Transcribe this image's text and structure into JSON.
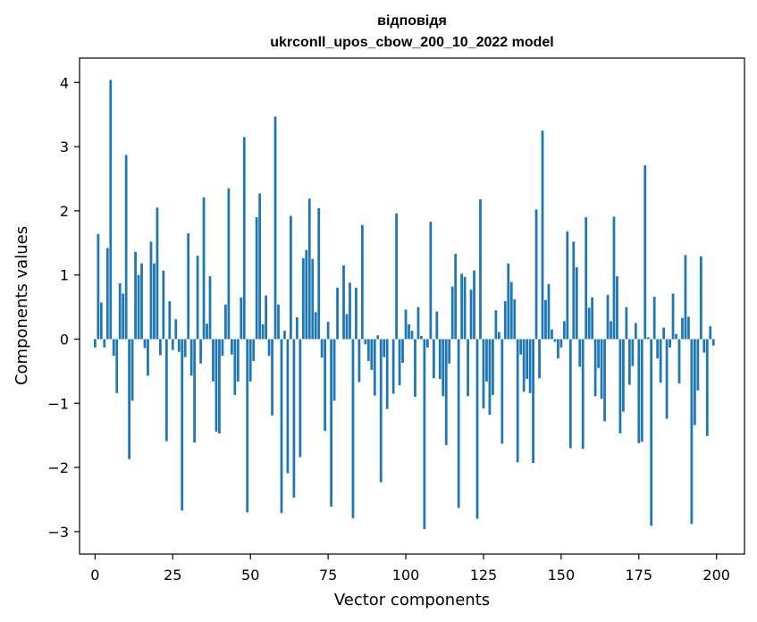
{
  "chart_data": {
    "type": "bar",
    "title_line1": "відповідя",
    "title_line2": "ukrconll_upos_cbow_200_10_2022 model",
    "xlabel": "Vector components",
    "ylabel": "Components values",
    "xlim": [
      -5,
      209
    ],
    "ylim": [
      -3.35,
      4.38
    ],
    "xticks": [
      0,
      25,
      50,
      75,
      100,
      125,
      150,
      175,
      200
    ],
    "yticks": [
      -3,
      -2,
      -1,
      0,
      1,
      2,
      3,
      4
    ],
    "grid": false,
    "legend": "none",
    "bar_color": "#1f77b4",
    "values": [
      -0.13,
      1.64,
      0.57,
      -0.13,
      1.42,
      4.04,
      -0.26,
      -0.84,
      0.87,
      0.71,
      2.87,
      -1.87,
      -0.96,
      1.36,
      1.0,
      1.18,
      -0.14,
      -0.57,
      1.52,
      1.18,
      2.05,
      -0.25,
      1.07,
      -1.59,
      0.59,
      -0.17,
      0.31,
      -0.2,
      -2.67,
      -0.28,
      1.65,
      -0.57,
      -1.61,
      1.3,
      -0.38,
      2.21,
      0.24,
      0.98,
      -0.66,
      -1.44,
      -1.47,
      -0.26,
      0.54,
      2.35,
      -0.24,
      -0.87,
      -0.66,
      0.65,
      3.15,
      -2.7,
      -0.66,
      -0.34,
      1.9,
      2.27,
      0.23,
      0.68,
      -0.26,
      -1.19,
      3.47,
      0.54,
      -2.71,
      0.13,
      -2.09,
      1.92,
      -2.47,
      0.34,
      -1.84,
      1.26,
      1.39,
      2.19,
      1.25,
      0.42,
      2.04,
      -0.29,
      -1.43,
      0.27,
      -2.61,
      -0.96,
      0.8,
      0.0,
      1.15,
      0.39,
      0.88,
      -2.79,
      0.8,
      -0.67,
      1.78,
      -0.08,
      -0.34,
      -0.48,
      -0.88,
      0.06,
      -2.23,
      -0.28,
      -1.09,
      0.0,
      -0.85,
      1.96,
      -0.72,
      -0.37,
      0.46,
      0.23,
      0.13,
      -0.9,
      0.5,
      0.05,
      -2.96,
      -0.13,
      1.83,
      -0.61,
      0.43,
      -0.62,
      -0.89,
      -1.65,
      -0.38,
      0.82,
      1.33,
      -2.63,
      1.02,
      0.97,
      -0.89,
      0.77,
      1.07,
      -2.8,
      2.18,
      -1.08,
      -0.66,
      -1.18,
      -0.87,
      0.45,
      0.11,
      -1.63,
      0.59,
      1.18,
      0.89,
      0.62,
      -1.92,
      -0.24,
      -0.82,
      -0.62,
      -0.84,
      -1.93,
      2.02,
      -0.61,
      3.25,
      0.61,
      0.86,
      0.15,
      -0.04,
      -0.3,
      -0.13,
      0.28,
      1.68,
      -1.7,
      1.52,
      1.12,
      -0.43,
      -1.71,
      1.9,
      0.49,
      0.65,
      -0.89,
      -0.45,
      -0.93,
      -1.28,
      0.69,
      0.28,
      1.91,
      0.98,
      -1.47,
      -1.13,
      0.5,
      -0.71,
      -0.42,
      0.25,
      -1.62,
      -1.6,
      2.71,
      0.03,
      -2.91,
      0.66,
      -0.3,
      -0.68,
      0.18,
      -1.24,
      -0.13,
      0.71,
      0.08,
      -0.69,
      0.33,
      1.31,
      0.35,
      -2.88,
      -1.34,
      -0.8,
      1.29,
      -0.21,
      -1.51,
      0.2,
      -0.1
    ]
  }
}
